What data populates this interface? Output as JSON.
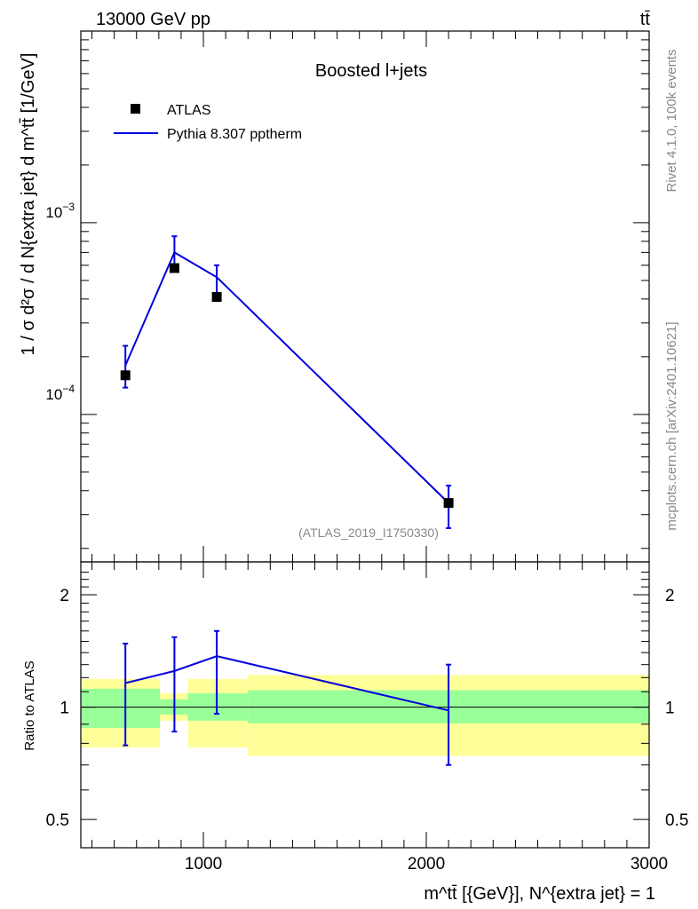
{
  "header": {
    "left_label": "13000 GeV pp",
    "right_label": "tt̄"
  },
  "side_labels": {
    "rivet": "Rivet 4.1.0,  100k events",
    "source": "mcplots.cern.ch [arXiv:2401.10621]"
  },
  "chart_data": [
    {
      "type": "line",
      "panel": "main",
      "title": "Boosted l+jets",
      "analysis_tag": "(ATLAS_2019_I1750330)",
      "ylabel": "1 / σ d²σ / d N{extra jet} d m^tt̄ [1/GeV]",
      "xlabel": "m^tt̄ [{GeV}], N^{extra jet} = 1",
      "xlim": [
        450,
        3000
      ],
      "ylim": [
        1.7e-05,
        0.01
      ],
      "yscale": "log",
      "x_ticks": [
        1000,
        2000,
        3000
      ],
      "x_tick_labels": [
        "1000",
        "2000",
        "3000"
      ],
      "y_tick_labels": [
        "10^-3",
        "10^-4"
      ],
      "y_tick_values": [
        0.001,
        0.0001
      ],
      "legend": [
        {
          "label": "ATLAS",
          "marker": "square",
          "color": "#000000"
        },
        {
          "label": "Pythia 8.307 pptherm",
          "marker": "line",
          "color": "#0000dd"
        }
      ],
      "series": [
        {
          "name": "ATLAS",
          "x": [
            650,
            870,
            1060,
            2100
          ],
          "y": [
            0.00016,
            0.00058,
            0.00041,
            3.45e-05
          ],
          "xerr_lo": [
            450,
            805,
            930,
            1200
          ],
          "xerr_hi": [
            805,
            930,
            1200,
            3000
          ]
        },
        {
          "name": "Pythia 8.307 pptherm",
          "x": [
            650,
            870,
            1060,
            2100
          ],
          "y": [
            0.00018,
            0.0007,
            0.00052,
            3.45e-05
          ],
          "yerr_lo": [
            0.000138,
            0.00058,
            0.00043,
            2.55e-05
          ],
          "yerr_hi": [
            0.000228,
            0.00085,
            0.0006,
            4.25e-05
          ]
        }
      ]
    },
    {
      "type": "line",
      "panel": "ratio",
      "ylabel": "Ratio to ATLAS",
      "yscale": "log",
      "ylim": [
        0.42,
        2.45
      ],
      "y_tick_labels": [
        "2",
        "1",
        "0.5"
      ],
      "y_tick_values": [
        2,
        1,
        0.5
      ],
      "bands": {
        "edges": [
          450,
          805,
          930,
          1200,
          3000
        ],
        "inner_lo": [
          0.88,
          0.955,
          0.92,
          0.905
        ],
        "inner_hi": [
          1.12,
          1.05,
          1.09,
          1.11
        ],
        "outer_lo": [
          0.78,
          0.92,
          0.78,
          0.74
        ],
        "outer_hi": [
          1.19,
          1.09,
          1.19,
          1.22
        ],
        "inner_color": "#99ff99",
        "outer_color": "#ffff99"
      },
      "series": [
        {
          "name": "Pythia 8.307 pptherm / ATLAS",
          "x": [
            650,
            870,
            1060,
            2100
          ],
          "y": [
            1.16,
            1.25,
            1.37,
            0.98
          ],
          "yerr_lo": [
            0.79,
            0.86,
            0.96,
            0.7
          ],
          "yerr_hi": [
            1.48,
            1.54,
            1.6,
            1.3
          ]
        }
      ]
    }
  ]
}
